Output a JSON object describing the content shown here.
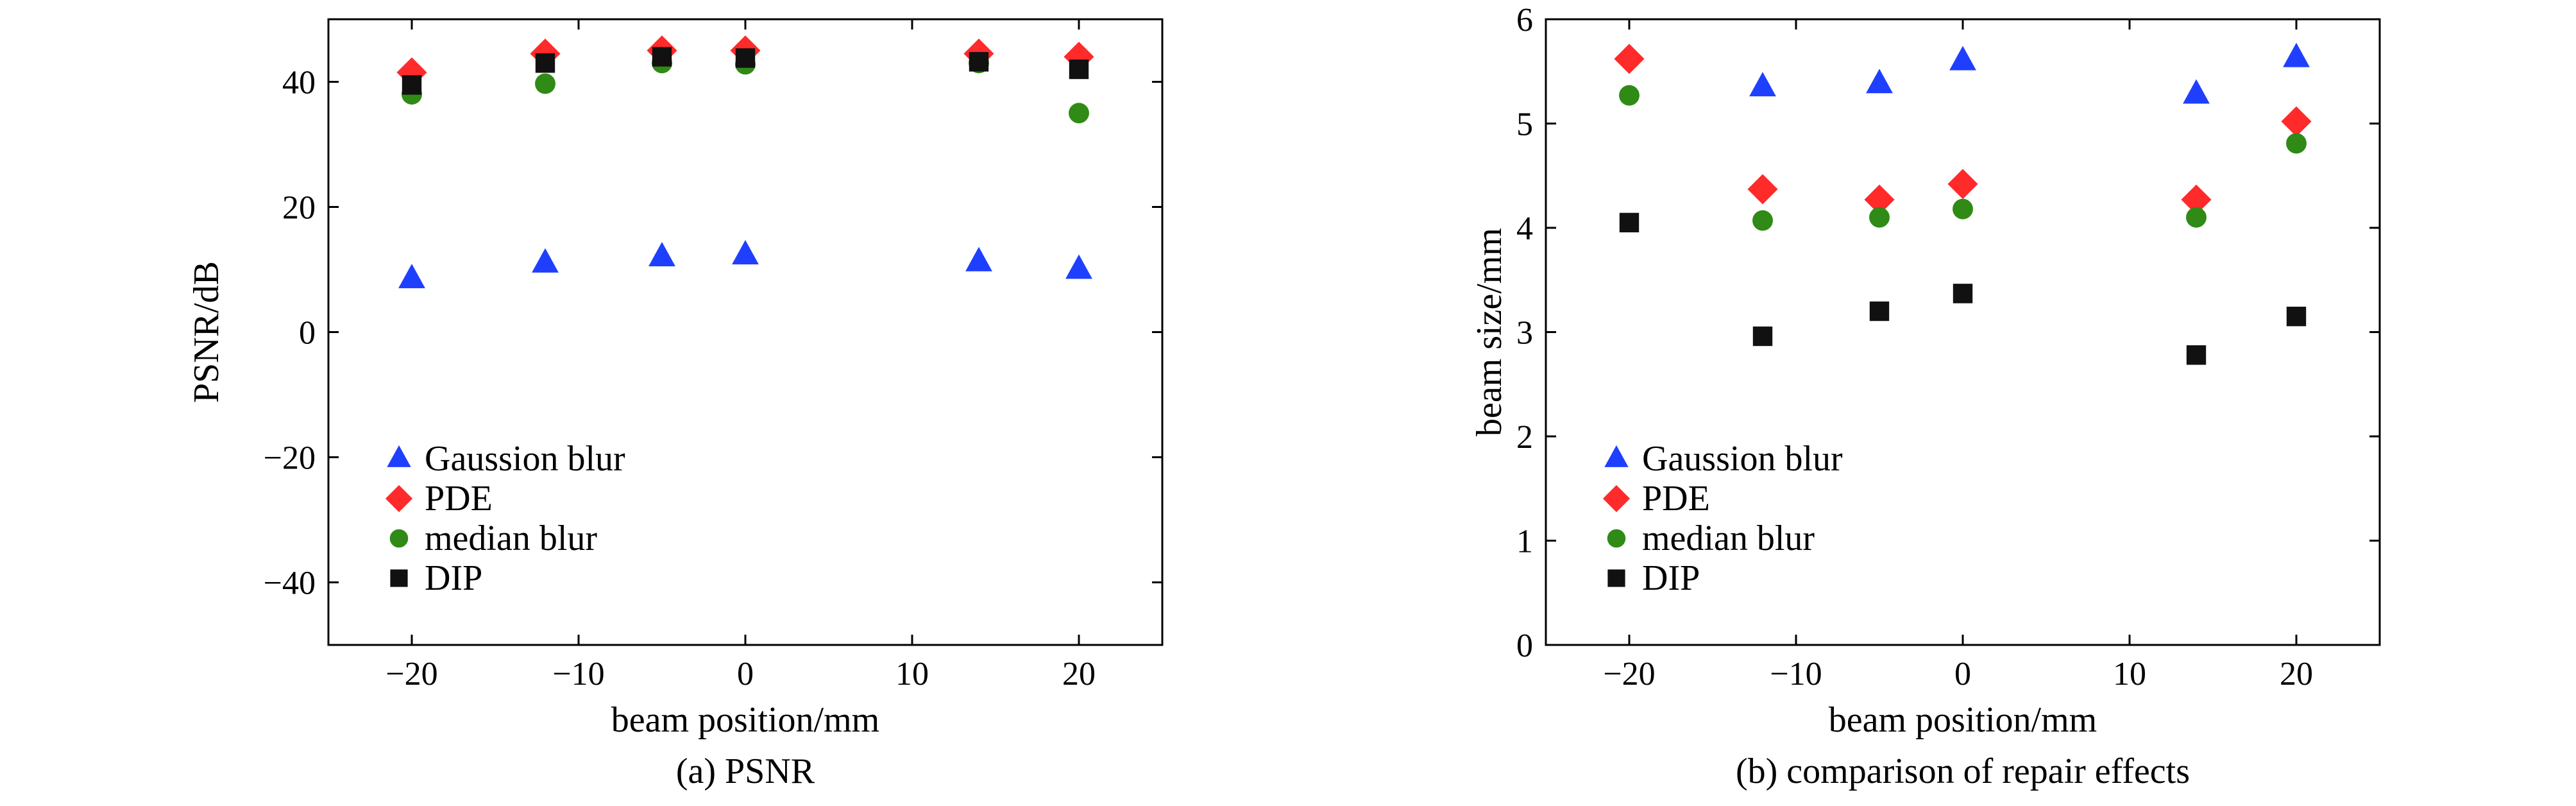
{
  "chart_data": [
    {
      "type": "scatter",
      "caption": "(a) PSNR",
      "xlabel": "beam position/mm",
      "ylabel": "PSNR/dB",
      "xlim": [
        -25,
        25
      ],
      "ylim": [
        -50,
        50
      ],
      "xticks": [
        -20,
        -10,
        0,
        10,
        20
      ],
      "yticks": [
        -40,
        -20,
        0,
        20,
        40
      ],
      "xtick_labels": [
        "−20",
        "−10",
        "0",
        "10",
        "20"
      ],
      "ytick_labels": [
        "−40",
        "−20",
        "0",
        "20",
        "40"
      ],
      "grid": false,
      "legend_position": "lower-left",
      "series": [
        {
          "name": "Gaussion blur",
          "marker": "triangle",
          "color": "#1f3fff",
          "x": [
            -20,
            -12,
            -5,
            0,
            14,
            20
          ],
          "y": [
            8.5,
            11,
            12,
            12.3,
            11.2,
            10
          ]
        },
        {
          "name": "PDE",
          "marker": "diamond",
          "color": "#ff2a2a",
          "x": [
            -20,
            -12,
            -5,
            0,
            14,
            20
          ],
          "y": [
            41.5,
            44.5,
            45,
            45,
            44.5,
            44
          ]
        },
        {
          "name": "median blur",
          "marker": "circle",
          "color": "#2f8a16",
          "x": [
            -20,
            -12,
            -5,
            0,
            14,
            20
          ],
          "y": [
            38,
            39.7,
            43,
            42.8,
            43,
            35
          ]
        },
        {
          "name": "DIP",
          "marker": "square",
          "color": "#111111",
          "x": [
            -20,
            -12,
            -5,
            0,
            14,
            20
          ],
          "y": [
            39.5,
            43,
            44,
            43.8,
            43.2,
            42
          ]
        }
      ]
    },
    {
      "type": "scatter",
      "caption": "(b) comparison of repair effects",
      "xlabel": "beam position/mm",
      "ylabel": "beam size/mm",
      "xlim": [
        -25,
        25
      ],
      "ylim": [
        0,
        6
      ],
      "xticks": [
        -20,
        -10,
        0,
        10,
        20
      ],
      "yticks": [
        0,
        1,
        2,
        3,
        4,
        5,
        6
      ],
      "xtick_labels": [
        "−20",
        "−10",
        "0",
        "10",
        "20"
      ],
      "ytick_labels": [
        "0",
        "1",
        "2",
        "3",
        "4",
        "5",
        "6"
      ],
      "grid": false,
      "legend_position": "lower-left",
      "series": [
        {
          "name": "Gaussion blur",
          "marker": "triangle",
          "color": "#1f3fff",
          "x": [
            -12,
            -5,
            0,
            14,
            20
          ],
          "y": [
            5.35,
            5.38,
            5.6,
            5.28,
            5.63
          ]
        },
        {
          "name": "PDE",
          "marker": "diamond",
          "color": "#ff2a2a",
          "x": [
            -20,
            -12,
            -5,
            0,
            14,
            20
          ],
          "y": [
            5.62,
            4.37,
            4.27,
            4.42,
            4.27,
            5.02
          ]
        },
        {
          "name": "median blur",
          "marker": "circle",
          "color": "#2f8a16",
          "x": [
            -20,
            -12,
            -5,
            0,
            14,
            20
          ],
          "y": [
            5.27,
            4.07,
            4.1,
            4.18,
            4.1,
            4.81
          ]
        },
        {
          "name": "DIP",
          "marker": "square",
          "color": "#111111",
          "x": [
            -20,
            -12,
            -5,
            0,
            14,
            20
          ],
          "y": [
            4.05,
            2.96,
            3.2,
            3.37,
            2.78,
            3.15
          ]
        }
      ]
    }
  ]
}
